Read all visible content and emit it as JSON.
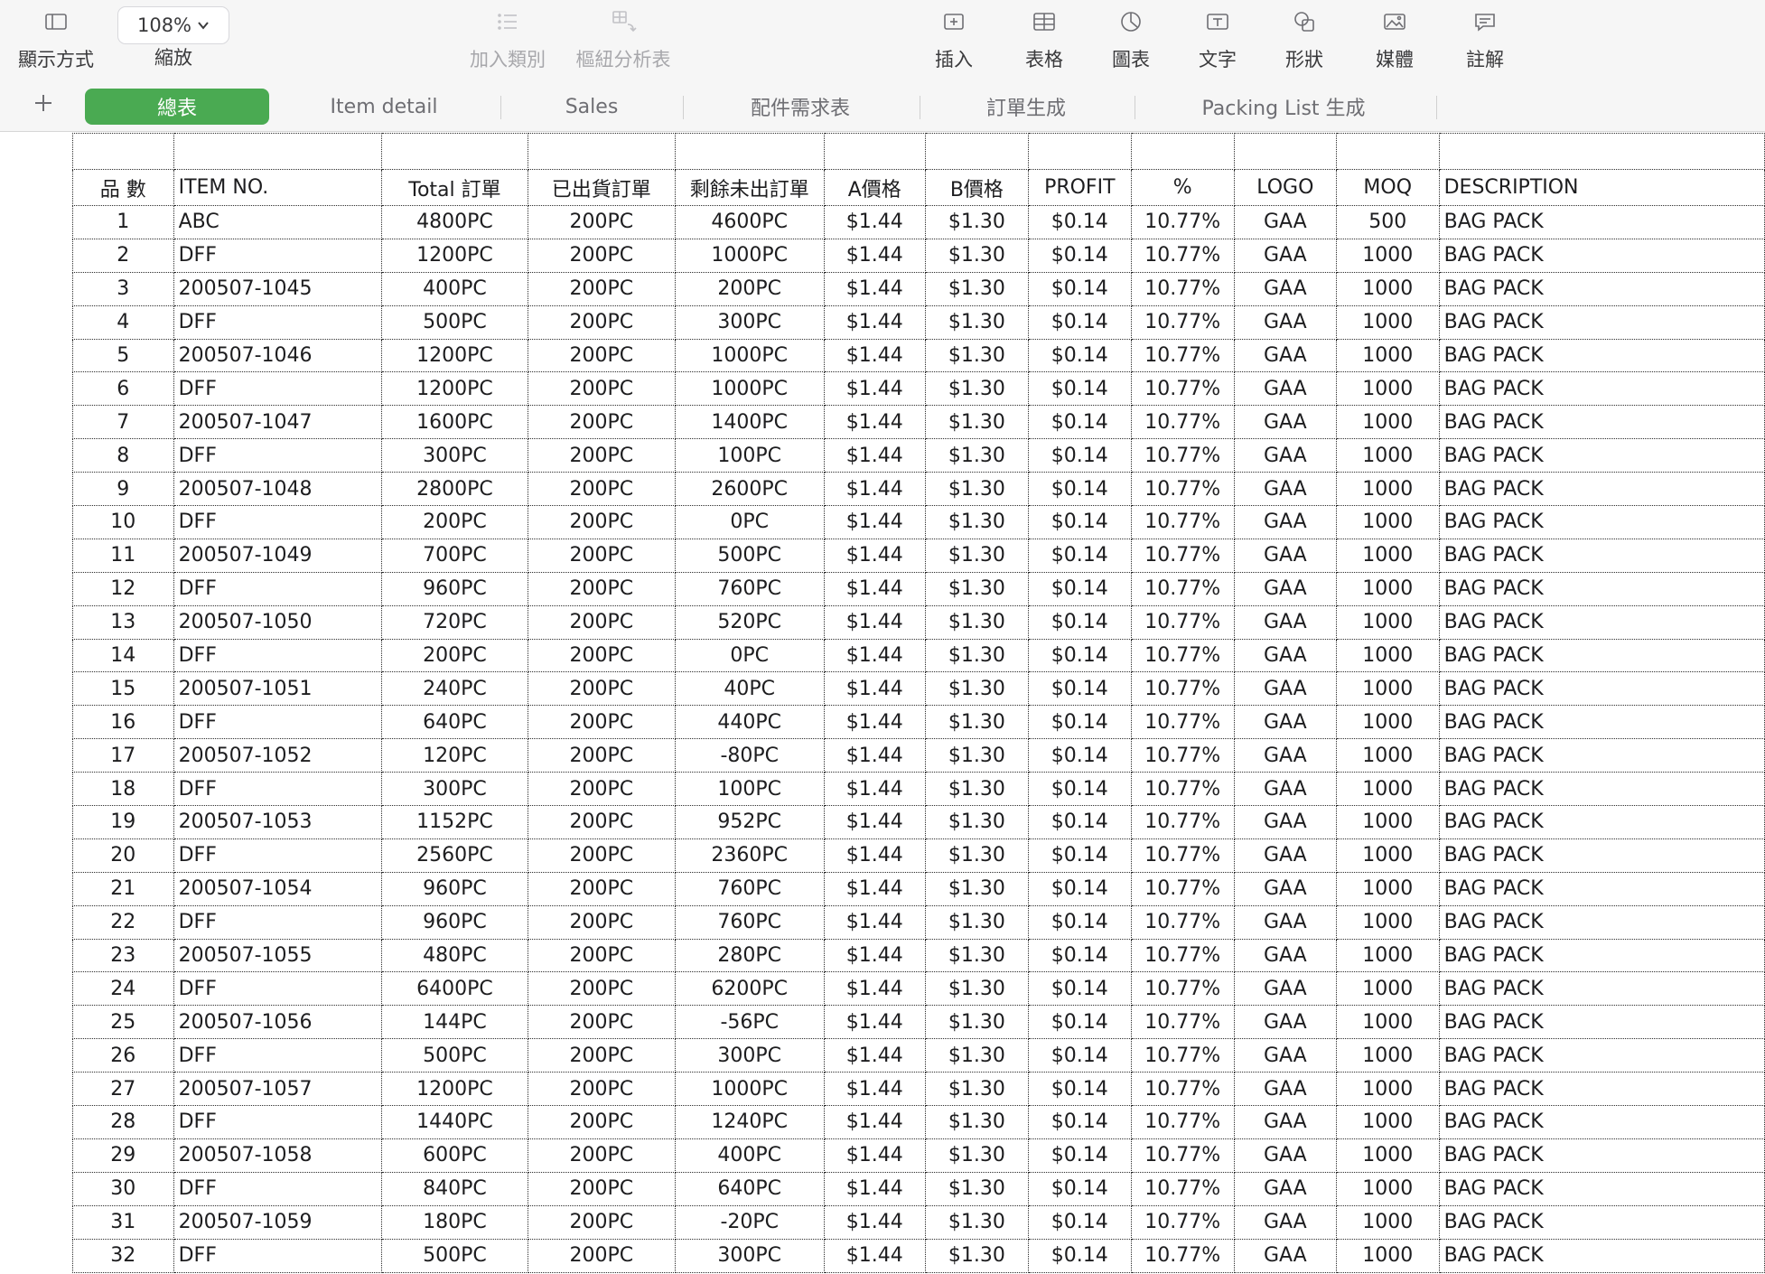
{
  "toolbar": {
    "view_label": "顯示方式",
    "zoom_value": "108%",
    "zoom_label": "縮放",
    "add_category_label": "加入類別",
    "pivot_label": "樞紐分析表",
    "insert_label": "插入",
    "table_label": "表格",
    "chart_label": "圖表",
    "text_label": "文字",
    "shape_label": "形狀",
    "media_label": "媒體",
    "comment_label": "註解",
    "icons": {
      "view": "sidebar-icon",
      "zoom": "chevron-down-icon",
      "add_category": "list-icon",
      "pivot": "pivot-table-icon",
      "insert": "insert-icon",
      "table": "table-icon",
      "chart": "chart-icon",
      "text": "text-icon",
      "shape": "shape-icon",
      "media": "media-icon",
      "comment": "comment-icon"
    }
  },
  "tabs": [
    {
      "label": "總表",
      "active": true
    },
    {
      "label": "Item detail",
      "active": false
    },
    {
      "label": "Sales",
      "active": false
    },
    {
      "label": "配件需求表",
      "active": false
    },
    {
      "label": "訂單生成",
      "active": false
    },
    {
      "label": "Packing List 生成",
      "active": false
    }
  ],
  "sheet": {
    "headers": [
      "品 數",
      "ITEM NO.",
      "Total 訂單",
      "已出貨訂單",
      "剩餘未出訂單",
      "A價格",
      "B價格",
      "PROFIT",
      "%",
      "LOGO",
      "MOQ",
      "DESCRIPTION"
    ],
    "rows": [
      [
        "1",
        "ABC",
        "4800PC",
        "200PC",
        "4600PC",
        "$1.44",
        "$1.30",
        "$0.14",
        "10.77%",
        "GAA",
        "500",
        "BAG PACK"
      ],
      [
        "2",
        "DFF",
        "1200PC",
        "200PC",
        "1000PC",
        "$1.44",
        "$1.30",
        "$0.14",
        "10.77%",
        "GAA",
        "1000",
        "BAG PACK"
      ],
      [
        "3",
        "200507-1045",
        "400PC",
        "200PC",
        "200PC",
        "$1.44",
        "$1.30",
        "$0.14",
        "10.77%",
        "GAA",
        "1000",
        "BAG PACK"
      ],
      [
        "4",
        "DFF",
        "500PC",
        "200PC",
        "300PC",
        "$1.44",
        "$1.30",
        "$0.14",
        "10.77%",
        "GAA",
        "1000",
        "BAG PACK"
      ],
      [
        "5",
        "200507-1046",
        "1200PC",
        "200PC",
        "1000PC",
        "$1.44",
        "$1.30",
        "$0.14",
        "10.77%",
        "GAA",
        "1000",
        "BAG PACK"
      ],
      [
        "6",
        "DFF",
        "1200PC",
        "200PC",
        "1000PC",
        "$1.44",
        "$1.30",
        "$0.14",
        "10.77%",
        "GAA",
        "1000",
        "BAG PACK"
      ],
      [
        "7",
        "200507-1047",
        "1600PC",
        "200PC",
        "1400PC",
        "$1.44",
        "$1.30",
        "$0.14",
        "10.77%",
        "GAA",
        "1000",
        "BAG PACK"
      ],
      [
        "8",
        "DFF",
        "300PC",
        "200PC",
        "100PC",
        "$1.44",
        "$1.30",
        "$0.14",
        "10.77%",
        "GAA",
        "1000",
        "BAG PACK"
      ],
      [
        "9",
        "200507-1048",
        "2800PC",
        "200PC",
        "2600PC",
        "$1.44",
        "$1.30",
        "$0.14",
        "10.77%",
        "GAA",
        "1000",
        "BAG PACK"
      ],
      [
        "10",
        "DFF",
        "200PC",
        "200PC",
        "0PC",
        "$1.44",
        "$1.30",
        "$0.14",
        "10.77%",
        "GAA",
        "1000",
        "BAG PACK"
      ],
      [
        "11",
        "200507-1049",
        "700PC",
        "200PC",
        "500PC",
        "$1.44",
        "$1.30",
        "$0.14",
        "10.77%",
        "GAA",
        "1000",
        "BAG PACK"
      ],
      [
        "12",
        "DFF",
        "960PC",
        "200PC",
        "760PC",
        "$1.44",
        "$1.30",
        "$0.14",
        "10.77%",
        "GAA",
        "1000",
        "BAG PACK"
      ],
      [
        "13",
        "200507-1050",
        "720PC",
        "200PC",
        "520PC",
        "$1.44",
        "$1.30",
        "$0.14",
        "10.77%",
        "GAA",
        "1000",
        "BAG PACK"
      ],
      [
        "14",
        "DFF",
        "200PC",
        "200PC",
        "0PC",
        "$1.44",
        "$1.30",
        "$0.14",
        "10.77%",
        "GAA",
        "1000",
        "BAG PACK"
      ],
      [
        "15",
        "200507-1051",
        "240PC",
        "200PC",
        "40PC",
        "$1.44",
        "$1.30",
        "$0.14",
        "10.77%",
        "GAA",
        "1000",
        "BAG PACK"
      ],
      [
        "16",
        "DFF",
        "640PC",
        "200PC",
        "440PC",
        "$1.44",
        "$1.30",
        "$0.14",
        "10.77%",
        "GAA",
        "1000",
        "BAG PACK"
      ],
      [
        "17",
        "200507-1052",
        "120PC",
        "200PC",
        "-80PC",
        "$1.44",
        "$1.30",
        "$0.14",
        "10.77%",
        "GAA",
        "1000",
        "BAG PACK"
      ],
      [
        "18",
        "DFF",
        "300PC",
        "200PC",
        "100PC",
        "$1.44",
        "$1.30",
        "$0.14",
        "10.77%",
        "GAA",
        "1000",
        "BAG PACK"
      ],
      [
        "19",
        "200507-1053",
        "1152PC",
        "200PC",
        "952PC",
        "$1.44",
        "$1.30",
        "$0.14",
        "10.77%",
        "GAA",
        "1000",
        "BAG PACK"
      ],
      [
        "20",
        "DFF",
        "2560PC",
        "200PC",
        "2360PC",
        "$1.44",
        "$1.30",
        "$0.14",
        "10.77%",
        "GAA",
        "1000",
        "BAG PACK"
      ],
      [
        "21",
        "200507-1054",
        "960PC",
        "200PC",
        "760PC",
        "$1.44",
        "$1.30",
        "$0.14",
        "10.77%",
        "GAA",
        "1000",
        "BAG PACK"
      ],
      [
        "22",
        "DFF",
        "960PC",
        "200PC",
        "760PC",
        "$1.44",
        "$1.30",
        "$0.14",
        "10.77%",
        "GAA",
        "1000",
        "BAG PACK"
      ],
      [
        "23",
        "200507-1055",
        "480PC",
        "200PC",
        "280PC",
        "$1.44",
        "$1.30",
        "$0.14",
        "10.77%",
        "GAA",
        "1000",
        "BAG PACK"
      ],
      [
        "24",
        "DFF",
        "6400PC",
        "200PC",
        "6200PC",
        "$1.44",
        "$1.30",
        "$0.14",
        "10.77%",
        "GAA",
        "1000",
        "BAG PACK"
      ],
      [
        "25",
        "200507-1056",
        "144PC",
        "200PC",
        "-56PC",
        "$1.44",
        "$1.30",
        "$0.14",
        "10.77%",
        "GAA",
        "1000",
        "BAG PACK"
      ],
      [
        "26",
        "DFF",
        "500PC",
        "200PC",
        "300PC",
        "$1.44",
        "$1.30",
        "$0.14",
        "10.77%",
        "GAA",
        "1000",
        "BAG PACK"
      ],
      [
        "27",
        "200507-1057",
        "1200PC",
        "200PC",
        "1000PC",
        "$1.44",
        "$1.30",
        "$0.14",
        "10.77%",
        "GAA",
        "1000",
        "BAG PACK"
      ],
      [
        "28",
        "DFF",
        "1440PC",
        "200PC",
        "1240PC",
        "$1.44",
        "$1.30",
        "$0.14",
        "10.77%",
        "GAA",
        "1000",
        "BAG PACK"
      ],
      [
        "29",
        "200507-1058",
        "600PC",
        "200PC",
        "400PC",
        "$1.44",
        "$1.30",
        "$0.14",
        "10.77%",
        "GAA",
        "1000",
        "BAG PACK"
      ],
      [
        "30",
        "DFF",
        "840PC",
        "200PC",
        "640PC",
        "$1.44",
        "$1.30",
        "$0.14",
        "10.77%",
        "GAA",
        "1000",
        "BAG PACK"
      ],
      [
        "31",
        "200507-1059",
        "180PC",
        "200PC",
        "-20PC",
        "$1.44",
        "$1.30",
        "$0.14",
        "10.77%",
        "GAA",
        "1000",
        "BAG PACK"
      ],
      [
        "32",
        "DFF",
        "500PC",
        "200PC",
        "300PC",
        "$1.44",
        "$1.30",
        "$0.14",
        "10.77%",
        "GAA",
        "1000",
        "BAG PACK"
      ]
    ]
  }
}
